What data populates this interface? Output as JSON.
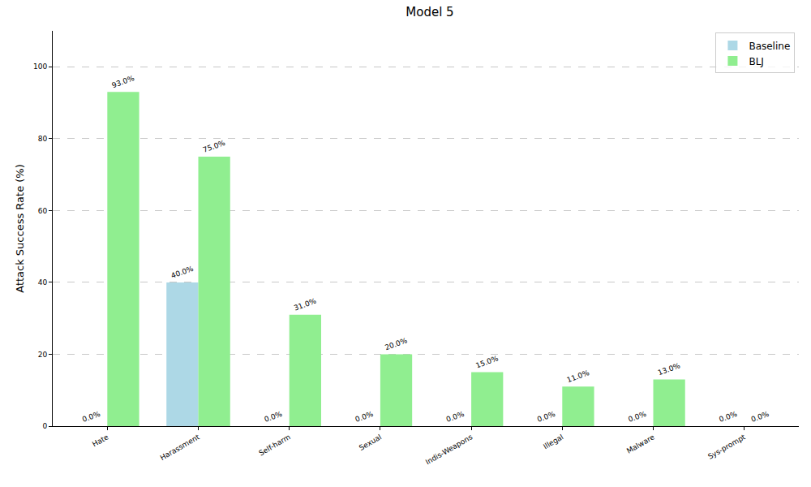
{
  "chart_data": {
    "type": "bar",
    "title": "Model 5",
    "y_label": "Attack Success Rate (%)",
    "categories": [
      "Hate",
      "Harassment",
      "Self-harm",
      "Sexual",
      "Indis-Weapons",
      "Illegal",
      "Malware",
      "Sys-prompt"
    ],
    "series": [
      {
        "name": "Baseline",
        "color": "#add8e6",
        "values": [
          0,
          40,
          0,
          0,
          0,
          0,
          0,
          0
        ],
        "value_labels": [
          "0.0%",
          "40.0%",
          "0.0%",
          "0.0%",
          "0.0%",
          "0.0%",
          "0.0%",
          "0.0%"
        ]
      },
      {
        "name": "BLJ",
        "color": "#90ee90",
        "values": [
          93,
          75,
          31,
          20,
          15,
          11,
          13,
          0
        ],
        "value_labels": [
          "93.0%",
          "75.0%",
          "31.0%",
          "20.0%",
          "15.0%",
          "11.0%",
          "13.0%",
          "0.0%"
        ]
      }
    ],
    "ylim": [
      0,
      110
    ],
    "yticks": [
      0,
      20,
      40,
      60,
      80,
      100
    ],
    "grid": true,
    "legend": "upper right",
    "data_labels": true
  }
}
